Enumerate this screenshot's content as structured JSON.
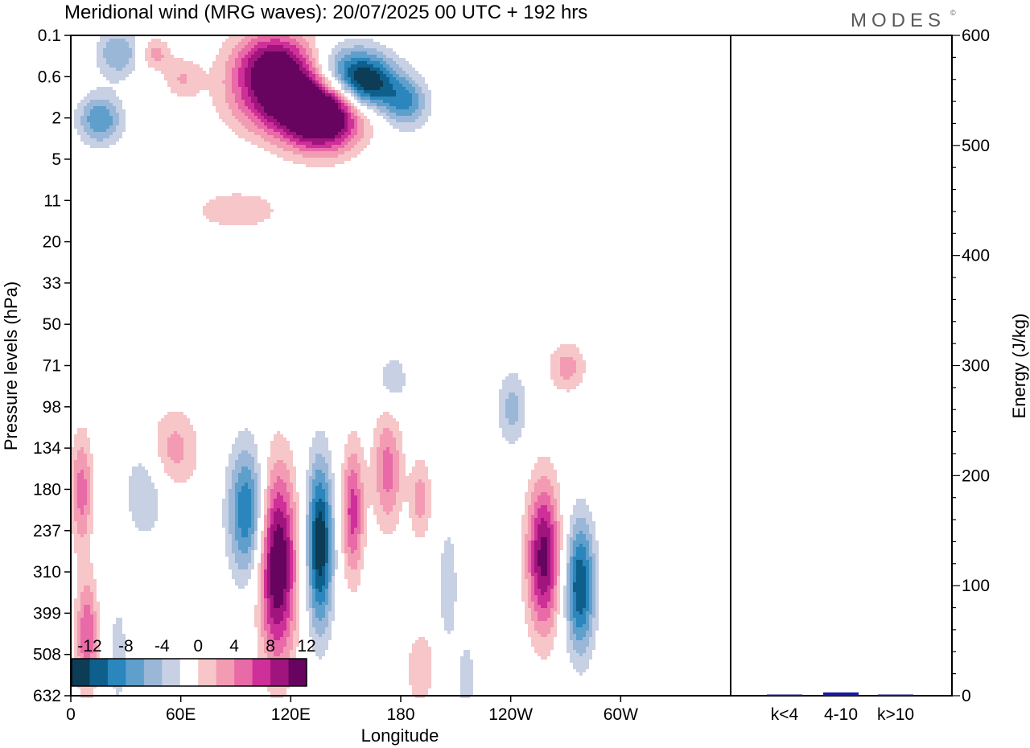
{
  "chart_data": {
    "type": "heatmap",
    "title": "Meridional wind (MRG waves):  20/07/2025  00 UTC  + 192 hrs",
    "brand": "MODES",
    "brand_mark": "©",
    "xlabel": "Longitude",
    "ylabel": "Pressure levels (hPa)",
    "x_ticks": [
      "0",
      "60E",
      "120E",
      "180",
      "120W",
      "60W"
    ],
    "y_ticks": [
      "0.1",
      "0.6",
      "2",
      "5",
      "11",
      "20",
      "33",
      "50",
      "71",
      "98",
      "134",
      "180",
      "237",
      "310",
      "399",
      "508",
      "632"
    ],
    "colorbar": {
      "labels": [
        "-12",
        "-8",
        "-4",
        "0",
        "4",
        "8",
        "12"
      ],
      "levels": [
        -14,
        -12,
        -10,
        -8,
        -6,
        -4,
        -2,
        2,
        4,
        6,
        8,
        10,
        12,
        14
      ],
      "colors": [
        "#0d3c56",
        "#0f5f8c",
        "#2a86bc",
        "#5f9fcb",
        "#9ab7d8",
        "#c8d0e4",
        "#ffffff",
        "#f7c6c8",
        "#f39bb3",
        "#e86aa7",
        "#cf2f98",
        "#a0147e",
        "#66045f"
      ]
    },
    "energy_panel": {
      "ylabel": "Energy (J/kg)",
      "ylim": [
        0,
        600
      ],
      "y_ticks": [
        "0",
        "100",
        "200",
        "300",
        "400",
        "500",
        "600"
      ],
      "categories": [
        "k<4",
        "4-10",
        "k>10"
      ],
      "values": [
        0.5,
        3,
        0.3
      ],
      "bar_colors": [
        "#1a1aa0",
        "#1a1aa0",
        "#1a1aa0"
      ]
    },
    "field_features": [
      {
        "lon": 120,
        "level_index": 1.5,
        "value": 14,
        "width_lon": 30,
        "width_lev": 0.9
      },
      {
        "lon": 137,
        "level_index": 2.0,
        "value": 13,
        "width_lon": 20,
        "width_lev": 0.8
      },
      {
        "lon": 110,
        "level_index": 0.6,
        "value": 11,
        "width_lon": 22,
        "width_lev": 0.8
      },
      {
        "lon": 150,
        "level_index": 0.9,
        "value": -11,
        "width_lon": 22,
        "width_lev": 0.7
      },
      {
        "lon": 162,
        "level_index": 1.2,
        "value": -9,
        "width_lon": 15,
        "width_lev": 0.6
      },
      {
        "lon": 182,
        "level_index": 1.6,
        "value": -8,
        "width_lon": 12,
        "width_lev": 0.6
      },
      {
        "lon": 25,
        "level_index": 0.4,
        "value": -6,
        "width_lon": 12,
        "width_lev": 0.6
      },
      {
        "lon": 15,
        "level_index": 2.0,
        "value": -8,
        "width_lon": 12,
        "width_lev": 0.6
      },
      {
        "lon": 45,
        "level_index": 0.4,
        "value": 5,
        "width_lon": 8,
        "width_lev": 0.4
      },
      {
        "lon": 60,
        "level_index": 1.0,
        "value": 4,
        "width_lon": 10,
        "width_lev": 0.5
      },
      {
        "lon": 90,
        "level_index": 4.2,
        "value": 3,
        "width_lon": 30,
        "width_lev": 0.6
      },
      {
        "lon": 5,
        "level_index": 11.0,
        "value": 7,
        "width_lon": 6,
        "width_lev": 1.4
      },
      {
        "lon": 8,
        "level_index": 14.5,
        "value": 8,
        "width_lon": 6,
        "width_lev": 1.4
      },
      {
        "lon": 40,
        "level_index": 11.0,
        "value": -4,
        "width_lon": 12,
        "width_lev": 1.2
      },
      {
        "lon": 25,
        "level_index": 15.0,
        "value": -3,
        "width_lon": 6,
        "width_lev": 1.5
      },
      {
        "lon": 55,
        "level_index": 10.0,
        "value": 5,
        "width_lon": 14,
        "width_lev": 1.0
      },
      {
        "lon": 95,
        "level_index": 11.5,
        "value": -10,
        "width_lon": 10,
        "width_lev": 1.6
      },
      {
        "lon": 112,
        "level_index": 12.8,
        "value": 15,
        "width_lon": 10,
        "width_lev": 2.3
      },
      {
        "lon": 135,
        "level_index": 12.3,
        "value": -14,
        "width_lon": 7,
        "width_lev": 2.0
      },
      {
        "lon": 153,
        "level_index": 11.5,
        "value": 9,
        "width_lon": 6,
        "width_lev": 1.6
      },
      {
        "lon": 172,
        "level_index": 10.5,
        "value": 7,
        "width_lon": 8,
        "width_lev": 1.4
      },
      {
        "lon": 190,
        "level_index": 11.2,
        "value": 5,
        "width_lon": 6,
        "width_lev": 1.0
      },
      {
        "lon": 205,
        "level_index": 13.3,
        "value": -4,
        "width_lon": 5,
        "width_lev": 1.4
      },
      {
        "lon": 257,
        "level_index": 12.6,
        "value": 13,
        "width_lon": 9,
        "width_lev": 1.8
      },
      {
        "lon": 277,
        "level_index": 13.3,
        "value": -12,
        "width_lon": 8,
        "width_lev": 1.6
      },
      {
        "lon": 240,
        "level_index": 9.0,
        "value": -5,
        "width_lon": 8,
        "width_lev": 0.9
      },
      {
        "lon": 270,
        "level_index": 8.0,
        "value": 5,
        "width_lon": 10,
        "width_lev": 0.6
      },
      {
        "lon": 190,
        "level_index": 15.3,
        "value": 4,
        "width_lon": 8,
        "width_lev": 0.9
      },
      {
        "lon": 215,
        "level_index": 15.5,
        "value": -3,
        "width_lon": 6,
        "width_lev": 1.0
      },
      {
        "lon": 175,
        "level_index": 8.3,
        "value": -4,
        "width_lon": 8,
        "width_lev": 0.6
      }
    ]
  }
}
